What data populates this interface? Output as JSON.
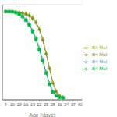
{
  "chart_data": {
    "type": "line",
    "xlabel": "Age (days)",
    "x": [
      7,
      8.5,
      10,
      11.5,
      13,
      14.5,
      16,
      17.5,
      19,
      20.5,
      22,
      23.5,
      25,
      26.5,
      28,
      29.5,
      31,
      32.5
    ],
    "series": [
      {
        "name": "B4 Mal",
        "color": "#99bb00",
        "marker": "triangle",
        "values": [
          1.0,
          1.0,
          1.0,
          0.995,
          0.99,
          0.985,
          0.975,
          0.96,
          0.93,
          0.88,
          0.8,
          0.68,
          0.52,
          0.35,
          0.18,
          0.08,
          0.03,
          0.01
        ],
        "error": [
          0.01,
          0.01,
          0.012,
          0.015,
          0.018,
          0.022,
          0.026,
          0.03,
          0.033,
          0.034,
          0.033,
          0.03,
          0.026,
          0.022,
          0.016,
          0.01,
          0.006,
          0.003
        ]
      },
      {
        "name": "B4 Mal",
        "color": "#888844",
        "marker": "circle",
        "values": [
          1.0,
          1.0,
          1.0,
          0.995,
          0.99,
          0.983,
          0.97,
          0.952,
          0.92,
          0.87,
          0.79,
          0.67,
          0.51,
          0.34,
          0.17,
          0.07,
          0.025,
          0.008
        ],
        "error": [
          0.01,
          0.01,
          0.012,
          0.015,
          0.018,
          0.022,
          0.026,
          0.03,
          0.033,
          0.034,
          0.033,
          0.03,
          0.026,
          0.022,
          0.016,
          0.01,
          0.006,
          0.003
        ]
      },
      {
        "name": "B4 Mal",
        "color": "#6699cc",
        "marker": "plus",
        "values": [
          1.0,
          1.0,
          0.998,
          0.99,
          0.975,
          0.95,
          0.91,
          0.855,
          0.78,
          0.69,
          0.57,
          0.44,
          0.3,
          0.17,
          0.08,
          0.03,
          0.01,
          0.003
        ],
        "error": [
          0.01,
          0.01,
          0.012,
          0.015,
          0.018,
          0.022,
          0.026,
          0.03,
          0.033,
          0.034,
          0.033,
          0.03,
          0.026,
          0.022,
          0.016,
          0.01,
          0.006,
          0.003
        ]
      },
      {
        "name": "B4 Mal",
        "color": "#00bb44",
        "marker": "square",
        "values": [
          1.0,
          1.0,
          0.998,
          0.988,
          0.97,
          0.942,
          0.9,
          0.845,
          0.77,
          0.68,
          0.56,
          0.43,
          0.29,
          0.16,
          0.07,
          0.025,
          0.008,
          0.002
        ],
        "error": [
          0.01,
          0.01,
          0.012,
          0.015,
          0.018,
          0.022,
          0.026,
          0.03,
          0.033,
          0.034,
          0.033,
          0.03,
          0.026,
          0.022,
          0.016,
          0.01,
          0.006,
          0.003
        ]
      }
    ],
    "xlim": [
      5.5,
      41
    ],
    "ylim": [
      -0.02,
      1.08
    ],
    "xticks": [
      7,
      10,
      13,
      16,
      19,
      22,
      25,
      28,
      31,
      34,
      37,
      40
    ],
    "yticks": [
      0.0,
      0.2,
      0.4,
      0.6,
      0.8,
      1.0
    ],
    "tick_labels": "x",
    "grid": true,
    "legend": "right"
  }
}
